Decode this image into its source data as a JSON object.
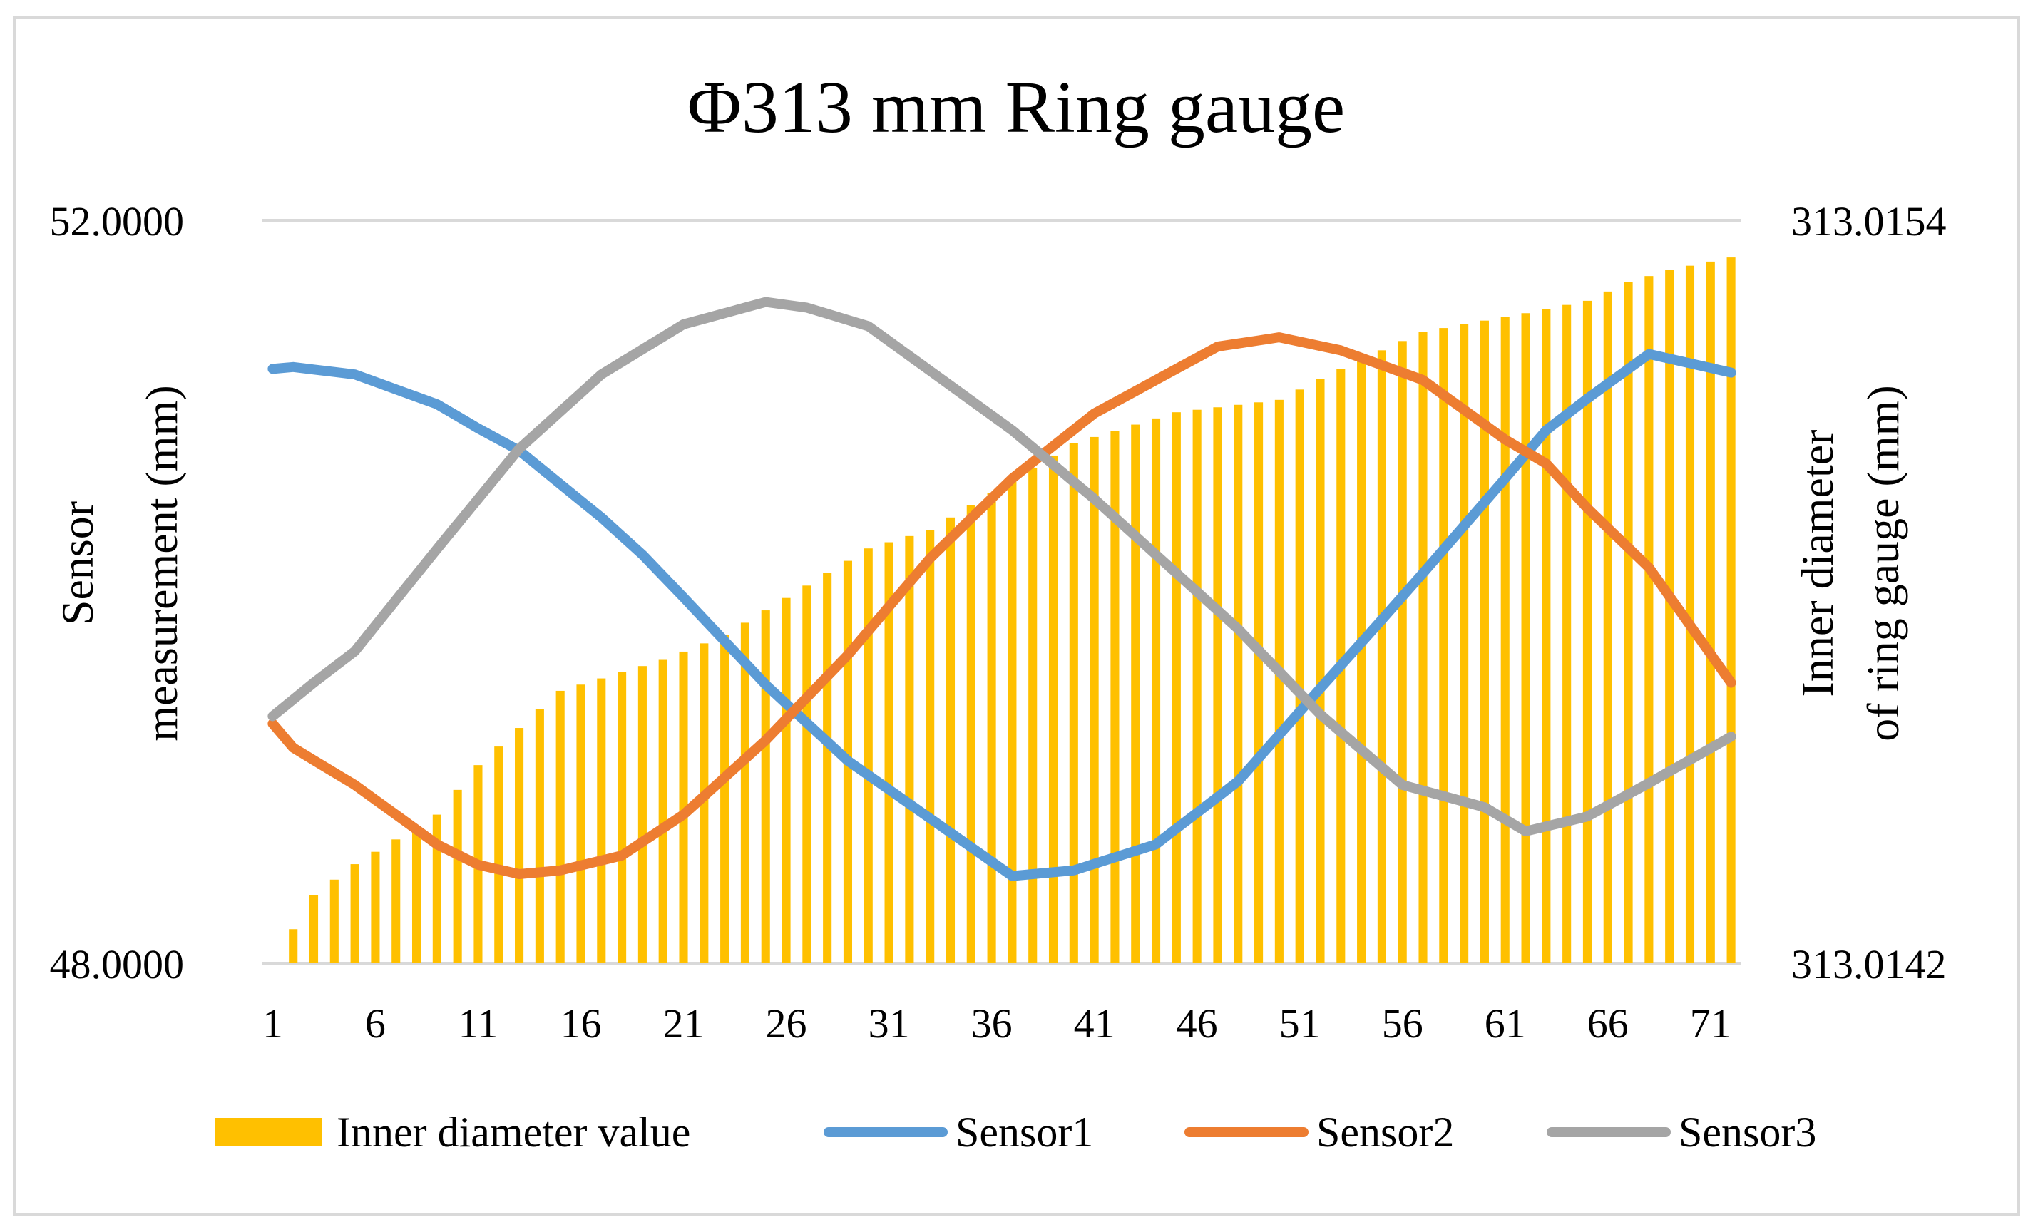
{
  "chart_data": {
    "type": "bar+line",
    "title": "Φ313 mm Ring gauge",
    "ylabel_left_lines": [
      "Sensor",
      "measurement (mm)"
    ],
    "ylabel_right_lines": [
      "Inner diameter",
      "of ring gauge (mm)"
    ],
    "y_left": {
      "min": 48.0,
      "max": 52.0,
      "tick_labels": [
        "52.0000",
        "48.0000"
      ]
    },
    "y_right": {
      "min": 313.0142,
      "max": 313.0154,
      "tick_labels": [
        "313.0154",
        "313.0142"
      ]
    },
    "x_tick_labels": [
      "1",
      "6",
      "11",
      "16",
      "21",
      "26",
      "31",
      "36",
      "41",
      "46",
      "51",
      "56",
      "61",
      "66",
      "71"
    ],
    "x_count": 72,
    "bar_series": {
      "name": "Inner diameter value",
      "color": "#ffc000",
      "anchors": [
        [
          1,
          313.0142
        ],
        [
          3,
          313.01431
        ],
        [
          5,
          313.01436
        ],
        [
          9,
          313.01444
        ],
        [
          11,
          313.01452
        ],
        [
          15,
          313.01464
        ],
        [
          20,
          313.01469
        ],
        [
          23,
          313.01473
        ],
        [
          27,
          313.01481
        ],
        [
          30,
          313.01487
        ],
        [
          33,
          313.0149
        ],
        [
          36,
          313.01496
        ],
        [
          40,
          313.01504
        ],
        [
          45,
          313.01509
        ],
        [
          50,
          313.01511
        ],
        [
          53,
          313.01516
        ],
        [
          57,
          313.01522
        ],
        [
          62,
          313.01525
        ],
        [
          65,
          313.01527
        ],
        [
          67,
          313.0153
        ],
        [
          69,
          313.01532
        ],
        [
          72,
          313.01534
        ]
      ]
    },
    "line_series": [
      {
        "name": "Sensor1",
        "color": "#5b9bd5",
        "anchors": [
          [
            1,
            51.2
          ],
          [
            2,
            51.21
          ],
          [
            5,
            51.17
          ],
          [
            9,
            51.01
          ],
          [
            11,
            50.88
          ],
          [
            13,
            50.76
          ],
          [
            17,
            50.4
          ],
          [
            19,
            50.2
          ],
          [
            21,
            49.97
          ],
          [
            25,
            49.5
          ],
          [
            29,
            49.09
          ],
          [
            33,
            48.78
          ],
          [
            37,
            48.47
          ],
          [
            40,
            48.5
          ],
          [
            44,
            48.64
          ],
          [
            48,
            48.98
          ],
          [
            52,
            49.48
          ],
          [
            55,
            49.85
          ],
          [
            57,
            50.1
          ],
          [
            61,
            50.61
          ],
          [
            63,
            50.87
          ],
          [
            65,
            51.04
          ],
          [
            68,
            51.28
          ],
          [
            72,
            51.18
          ]
        ]
      },
      {
        "name": "Sensor2",
        "color": "#ed7d31",
        "anchors": [
          [
            1,
            49.29
          ],
          [
            2,
            49.16
          ],
          [
            5,
            48.96
          ],
          [
            9,
            48.64
          ],
          [
            11,
            48.53
          ],
          [
            13,
            48.48
          ],
          [
            15,
            48.5
          ],
          [
            18,
            48.58
          ],
          [
            21,
            48.8
          ],
          [
            25,
            49.2
          ],
          [
            29,
            49.66
          ],
          [
            33,
            50.18
          ],
          [
            37,
            50.61
          ],
          [
            41,
            50.96
          ],
          [
            43,
            51.08
          ],
          [
            47,
            51.32
          ],
          [
            50,
            51.37
          ],
          [
            53,
            51.3
          ],
          [
            57,
            51.14
          ],
          [
            61,
            50.82
          ],
          [
            63,
            50.69
          ],
          [
            65,
            50.45
          ],
          [
            68,
            50.13
          ],
          [
            72,
            49.51
          ]
        ]
      },
      {
        "name": "Sensor3",
        "color": "#a5a5a5",
        "anchors": [
          [
            1,
            49.33
          ],
          [
            3,
            49.51
          ],
          [
            5,
            49.68
          ],
          [
            9,
            50.23
          ],
          [
            13,
            50.77
          ],
          [
            17,
            51.17
          ],
          [
            21,
            51.44
          ],
          [
            25,
            51.56
          ],
          [
            27,
            51.53
          ],
          [
            30,
            51.43
          ],
          [
            33,
            51.19
          ],
          [
            37,
            50.87
          ],
          [
            41,
            50.5
          ],
          [
            44,
            50.2
          ],
          [
            48,
            49.8
          ],
          [
            52,
            49.34
          ],
          [
            56,
            48.96
          ],
          [
            60,
            48.84
          ],
          [
            62,
            48.71
          ],
          [
            65,
            48.79
          ],
          [
            68,
            48.97
          ],
          [
            72,
            49.22
          ]
        ]
      }
    ],
    "legend": [
      "Inner diameter value",
      "Sensor1",
      "Sensor2",
      "Sensor3"
    ],
    "legend_position": "bottom",
    "gridlines": "horizontal"
  }
}
